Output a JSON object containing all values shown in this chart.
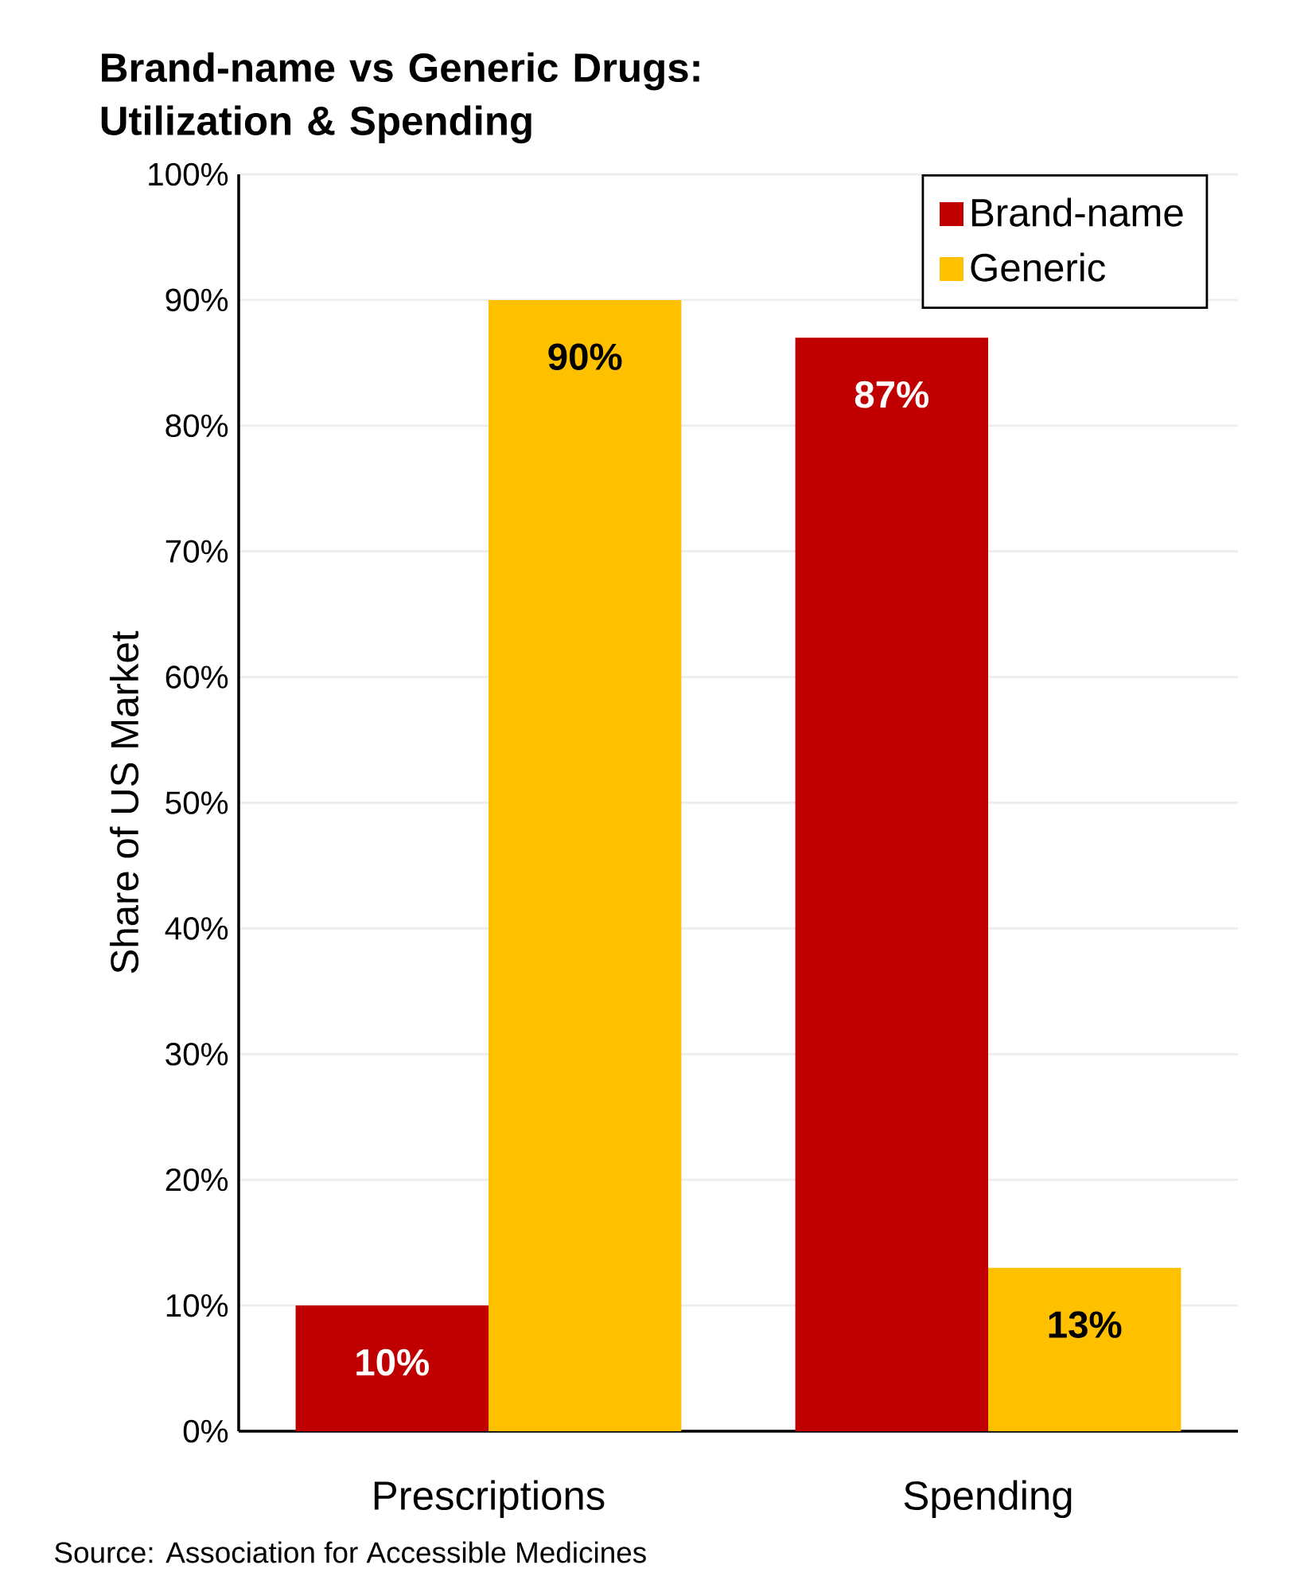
{
  "chart_data": {
    "type": "bar",
    "title": "Brand-name vs Generic Drugs:\nUtilization & Spending",
    "ylabel": "Share of US Market",
    "categories": [
      "Prescriptions",
      "Spending"
    ],
    "series": [
      {
        "name": "Brand-name",
        "color": "#c00000",
        "values": [
          10,
          87
        ],
        "value_labels": [
          "10%",
          "87%"
        ]
      },
      {
        "name": "Generic",
        "color": "#ffc000",
        "values": [
          90,
          13
        ],
        "value_labels": [
          "90%",
          "13%"
        ]
      }
    ],
    "ylim": [
      0,
      100
    ],
    "yticks": [
      {
        "value": 0,
        "label": "0%"
      },
      {
        "value": 10,
        "label": "10%"
      },
      {
        "value": 20,
        "label": "20%"
      },
      {
        "value": 30,
        "label": "30%"
      },
      {
        "value": 40,
        "label": "40%"
      },
      {
        "value": 50,
        "label": "50%"
      },
      {
        "value": 60,
        "label": "60%"
      },
      {
        "value": 70,
        "label": "70%"
      },
      {
        "value": 80,
        "label": "80%"
      },
      {
        "value": 90,
        "label": "90%"
      },
      {
        "value": 100,
        "label": "100%"
      }
    ],
    "grid": "y",
    "legend": "top right",
    "annotations": [
      "Source: Association for Accessible Medicines"
    ]
  }
}
